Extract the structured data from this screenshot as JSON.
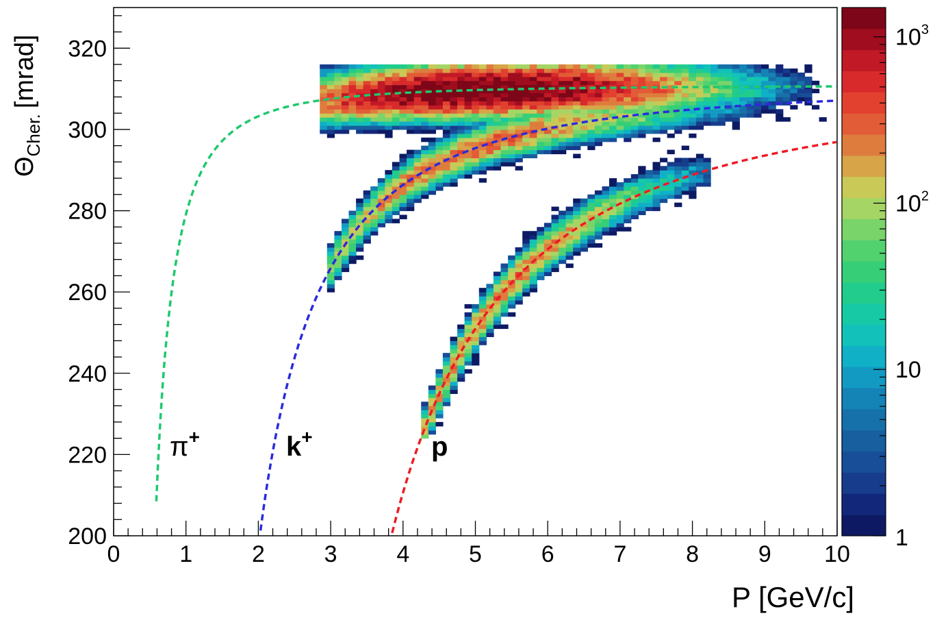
{
  "chart_data": {
    "type": "heatmap",
    "xlabel": "P [GeV/c]",
    "ylabel_main": "Θ",
    "ylabel_sub": "Cher.",
    "ylabel_unit": "[mrad]",
    "xlim": [
      0,
      10
    ],
    "ylim": [
      200,
      330
    ],
    "x_ticks": [
      "0",
      "1",
      "2",
      "3",
      "4",
      "5",
      "6",
      "7",
      "8",
      "9",
      "10"
    ],
    "y_ticks": [
      "200",
      "220",
      "240",
      "260",
      "280",
      "300",
      "320"
    ],
    "colorbar": {
      "scale": "log",
      "range": [
        1,
        1500
      ],
      "tick_base": [
        "10",
        "10",
        "10",
        "1"
      ],
      "tick_exp": [
        "3",
        "2",
        "",
        ""
      ],
      "tick_values": [
        1000,
        100,
        10,
        1
      ],
      "colors": [
        "#0d1a63",
        "#13277a",
        "#173c8c",
        "#184d97",
        "#175f9f",
        "#1670a9",
        "#1483b6",
        "#139ac2",
        "#10b0c6",
        "#12c2ba",
        "#17c9a5",
        "#21cc8c",
        "#36cf78",
        "#52d26f",
        "#79d46a",
        "#a5d565",
        "#c9c957",
        "#d7a448",
        "#de7c3e",
        "#e25c37",
        "#e2412f",
        "#d82a2b",
        "#c11926",
        "#a00d1f",
        "#7d0618"
      ]
    },
    "series": [
      {
        "name": "π",
        "sup": "+",
        "color": "#1fc86e",
        "mass": 0.1396
      },
      {
        "name": "k",
        "sup": "+",
        "color": "#2b2bdc",
        "mass": 0.4937
      },
      {
        "name": "p",
        "sup": "",
        "color": "#ee1b24",
        "mass": 0.9383
      }
    ],
    "curve_model": {
      "theta_max_mrad": 310.9
    }
  }
}
